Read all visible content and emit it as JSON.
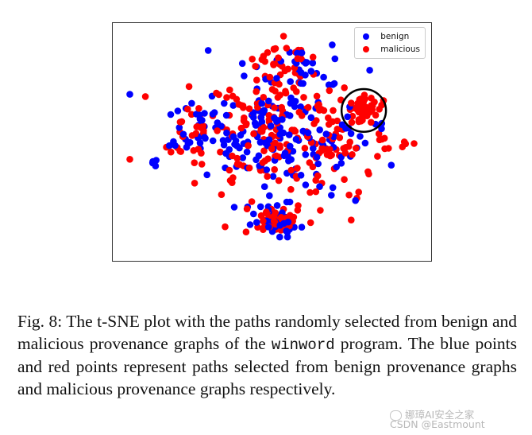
{
  "figure": {
    "legend": [
      {
        "label": "benign",
        "color": "#0000ff"
      },
      {
        "label": "malicious",
        "color": "#ff0000"
      }
    ],
    "highlight_circle_color": "#000000"
  },
  "chart_data": {
    "type": "scatter",
    "title": "",
    "xlabel": "",
    "ylabel": "",
    "grid": false,
    "legend_placement": "top-right",
    "xlim": [
      0,
      100
    ],
    "ylim": [
      0,
      100
    ],
    "series": [
      {
        "name": "benign",
        "color": "#0000ff",
        "clusters": [
          {
            "cx": 50,
            "cy": 55,
            "sx": 14,
            "sy": 14,
            "n": 150
          },
          {
            "cx": 52,
            "cy": 15,
            "sx": 4,
            "sy": 3,
            "n": 35
          },
          {
            "cx": 24,
            "cy": 55,
            "sx": 6,
            "sy": 8,
            "n": 25
          },
          {
            "cx": 72,
            "cy": 50,
            "sx": 5,
            "sy": 9,
            "n": 20
          },
          {
            "cx": 55,
            "cy": 85,
            "sx": 7,
            "sy": 5,
            "n": 18
          },
          {
            "cx": 7,
            "cy": 40,
            "sx": 2,
            "sy": 2,
            "n": 4
          }
        ]
      },
      {
        "name": "malicious",
        "color": "#ff0000",
        "clusters": [
          {
            "cx": 50,
            "cy": 55,
            "sx": 15,
            "sy": 15,
            "n": 180
          },
          {
            "cx": 80,
            "cy": 65,
            "sx": 3,
            "sy": 3,
            "n": 55
          },
          {
            "cx": 52,
            "cy": 15,
            "sx": 4,
            "sy": 3,
            "n": 40
          },
          {
            "cx": 24,
            "cy": 55,
            "sx": 6,
            "sy": 8,
            "n": 25
          },
          {
            "cx": 72,
            "cy": 50,
            "sx": 5,
            "sy": 9,
            "n": 25
          },
          {
            "cx": 55,
            "cy": 85,
            "sx": 7,
            "sy": 5,
            "n": 25
          },
          {
            "cx": 95,
            "cy": 48,
            "sx": 1,
            "sy": 1,
            "n": 3
          },
          {
            "cx": 87,
            "cy": 51,
            "sx": 2,
            "sy": 2,
            "n": 6
          }
        ]
      }
    ],
    "highlight": {
      "cx": 81,
      "cy": 64,
      "rx": 7.5,
      "ry": 9.5
    }
  },
  "caption": {
    "prefix": "Fig. 8: The t-SNE plot with the paths randomly selected from benign and malicious provenance graphs of the ",
    "code": "winword",
    "suffix": " program. The blue points and red points represent paths selected from benign provenance graphs and malicious provenance graphs respectively."
  },
  "watermark": {
    "line1": "娜璋AI安全之家",
    "line2": "CSDN @Eastmount"
  }
}
